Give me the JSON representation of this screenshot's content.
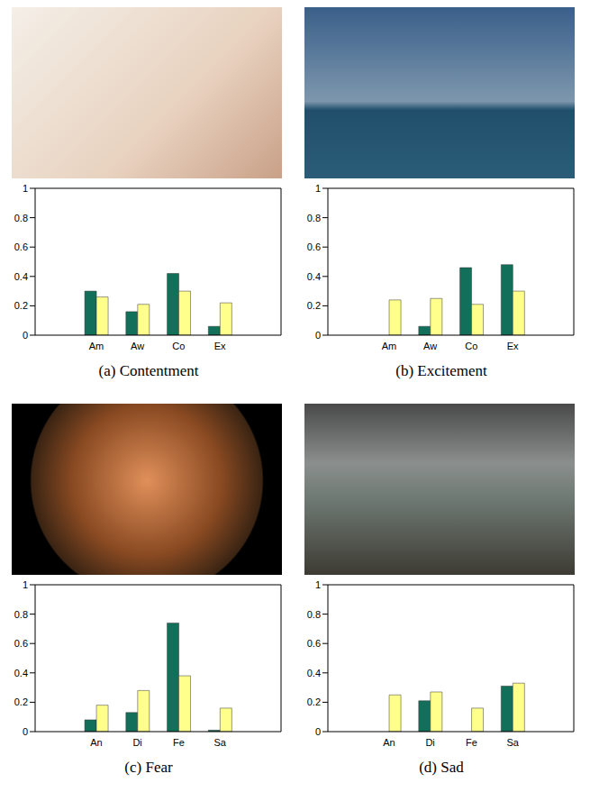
{
  "chart_data": [
    {
      "type": "bar",
      "title": "(a) Contentment",
      "categories": [
        "Am",
        "Aw",
        "Co",
        "Ex"
      ],
      "series": [
        {
          "color": "#12705a",
          "values": [
            0.3,
            0.16,
            0.42,
            0.06
          ]
        },
        {
          "color": "#ffff8c",
          "values": [
            0.26,
            0.21,
            0.3,
            0.22
          ]
        }
      ],
      "ylim": [
        0,
        1
      ],
      "yticks": [
        0,
        0.2,
        0.4,
        0.6,
        0.8,
        1
      ]
    },
    {
      "type": "bar",
      "title": "(b) Excitement",
      "categories": [
        "Am",
        "Aw",
        "Co",
        "Ex"
      ],
      "series": [
        {
          "color": "#12705a",
          "values": [
            0,
            0.06,
            0.46,
            0.48
          ]
        },
        {
          "color": "#ffff8c",
          "values": [
            0.24,
            0.25,
            0.21,
            0.3
          ]
        }
      ],
      "ylim": [
        0,
        1
      ],
      "yticks": [
        0,
        0.2,
        0.4,
        0.6,
        0.8,
        1
      ]
    },
    {
      "type": "bar",
      "title": "(c) Fear",
      "categories": [
        "An",
        "Di",
        "Fe",
        "Sa"
      ],
      "series": [
        {
          "color": "#12705a",
          "values": [
            0.08,
            0.13,
            0.74,
            0.01
          ]
        },
        {
          "color": "#ffff8c",
          "values": [
            0.18,
            0.28,
            0.38,
            0.16
          ]
        }
      ],
      "ylim": [
        0,
        1
      ],
      "yticks": [
        0,
        0.2,
        0.4,
        0.6,
        0.8,
        1
      ]
    },
    {
      "type": "bar",
      "title": "(d) Sad",
      "categories": [
        "An",
        "Di",
        "Fe",
        "Sa"
      ],
      "series": [
        {
          "color": "#12705a",
          "values": [
            0,
            0.21,
            0,
            0.31
          ]
        },
        {
          "color": "#ffff8c",
          "values": [
            0.25,
            0.27,
            0.16,
            0.33
          ]
        }
      ],
      "ylim": [
        0,
        1
      ],
      "yticks": [
        0,
        0.2,
        0.4,
        0.6,
        0.8,
        1
      ]
    }
  ]
}
